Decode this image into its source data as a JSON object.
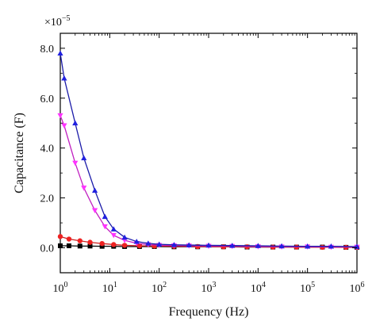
{
  "chart_data": {
    "type": "line",
    "title": "",
    "xlabel": "Frequency (Hz)",
    "ylabel": "Capacitance (F)",
    "y_multiplier": "×10",
    "y_multiplier_exp": "−5",
    "x_scale": "log",
    "xlim": [
      1,
      1000000
    ],
    "ylim": [
      -1.0,
      8.6
    ],
    "x_ticks": [
      {
        "value": 1,
        "base": "10",
        "exp": "0"
      },
      {
        "value": 10,
        "base": "10",
        "exp": "1"
      },
      {
        "value": 100,
        "base": "10",
        "exp": "2"
      },
      {
        "value": 1000,
        "base": "10",
        "exp": "3"
      },
      {
        "value": 10000,
        "base": "10",
        "exp": "4"
      },
      {
        "value": 100000,
        "base": "10",
        "exp": "5"
      },
      {
        "value": 1000000,
        "base": "10",
        "exp": "6"
      }
    ],
    "y_ticks": [
      {
        "value": 0.0,
        "label": "0.0"
      },
      {
        "value": 2.0,
        "label": "2.0"
      },
      {
        "value": 4.0,
        "label": "4.0"
      },
      {
        "value": 6.0,
        "label": "6.0"
      },
      {
        "value": 8.0,
        "label": "8.0"
      }
    ],
    "grid": false,
    "legend": "none",
    "series": [
      {
        "color": "#1a1aa8",
        "marker_color": "#2020e0",
        "marker": "triangle-up",
        "x": [
          1,
          1.2,
          2,
          3,
          5,
          8,
          12,
          20,
          35,
          60,
          100,
          200,
          400,
          1000,
          3000,
          10000,
          30000,
          100000,
          300000,
          1000000
        ],
        "y": [
          7.8,
          6.8,
          5.0,
          3.6,
          2.3,
          1.25,
          0.75,
          0.42,
          0.25,
          0.18,
          0.14,
          0.12,
          0.11,
          0.1,
          0.09,
          0.08,
          0.07,
          0.06,
          0.06,
          0.05
        ]
      },
      {
        "color": "#c020c0",
        "marker_color": "#ff33ff",
        "marker": "triangle-down",
        "x": [
          1,
          1.2,
          2,
          3,
          5,
          8,
          12,
          20,
          35,
          60,
          100,
          200,
          400,
          1000,
          3000,
          10000,
          30000,
          100000,
          300000,
          1000000
        ],
        "y": [
          5.3,
          4.9,
          3.4,
          2.4,
          1.5,
          0.85,
          0.5,
          0.3,
          0.18,
          0.13,
          0.1,
          0.09,
          0.08,
          0.07,
          0.06,
          0.05,
          0.04,
          0.04,
          0.03,
          0.03
        ]
      },
      {
        "color": "#cc2020",
        "marker_color": "#ee2222",
        "marker": "circle",
        "x": [
          1,
          1.5,
          2.5,
          4,
          7,
          12,
          20,
          40,
          80,
          200,
          600,
          2000,
          6000,
          20000,
          60000,
          200000,
          600000,
          1000000
        ],
        "y": [
          0.45,
          0.35,
          0.28,
          0.22,
          0.17,
          0.13,
          0.1,
          0.08,
          0.07,
          0.06,
          0.05,
          0.04,
          0.04,
          0.03,
          0.03,
          0.02,
          0.02,
          0.02
        ]
      },
      {
        "color": "#000000",
        "marker_color": "#000000",
        "marker": "square",
        "x": [
          1,
          1.5,
          2.5,
          4,
          7,
          12,
          20,
          40,
          80,
          200,
          600,
          2000,
          6000,
          20000,
          60000,
          200000,
          600000,
          1000000
        ],
        "y": [
          0.08,
          0.08,
          0.07,
          0.07,
          0.06,
          0.06,
          0.05,
          0.05,
          0.05,
          0.04,
          0.04,
          0.04,
          0.03,
          0.03,
          0.03,
          0.03,
          0.02,
          0.02
        ]
      }
    ]
  }
}
